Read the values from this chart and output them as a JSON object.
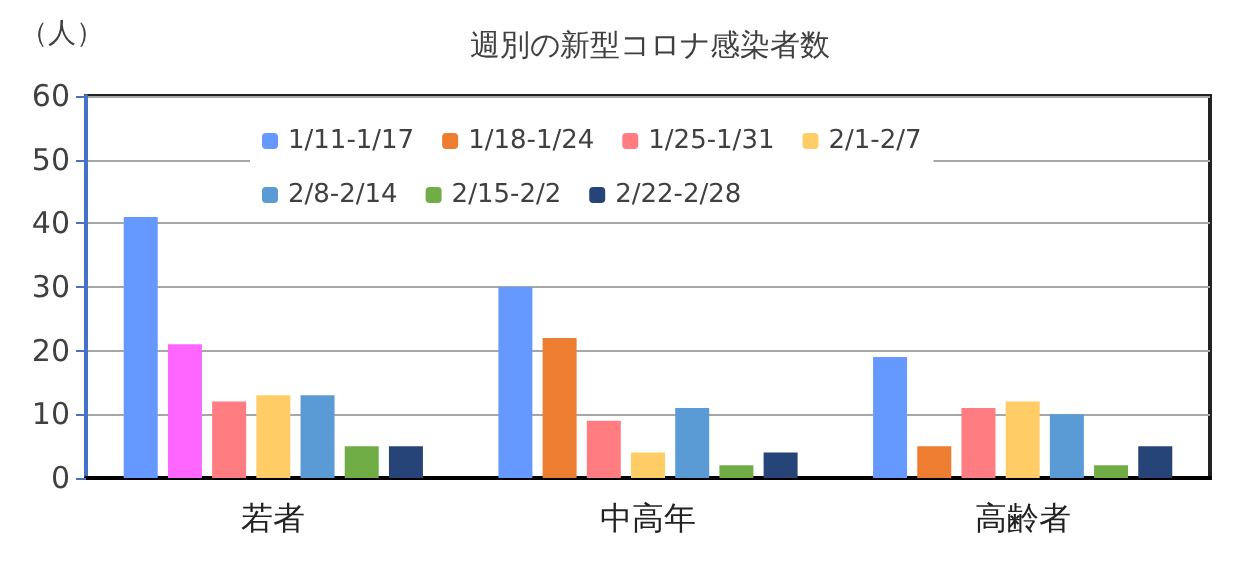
{
  "chart_data": {
    "type": "bar",
    "title": "週別の新型コロナ感染者数",
    "ylabel": "（人）",
    "categories": [
      "若者",
      "中高年",
      "高齢者"
    ],
    "series": [
      {
        "name": "1/11-1/17",
        "color": "#6699ff",
        "values": [
          41,
          30,
          19
        ]
      },
      {
        "name": "1/18-1/24",
        "color": "#ed7d31",
        "colors": [
          "#ff66ff",
          "#ed7d31",
          "#ed7d31"
        ],
        "values": [
          21,
          22,
          5
        ]
      },
      {
        "name": "1/25-1/31",
        "color": "#ff7c80",
        "values": [
          12,
          9,
          11
        ]
      },
      {
        "name": "2/1-2/7",
        "color": "#ffcc66",
        "values": [
          13,
          4,
          12
        ]
      },
      {
        "name": "2/8-2/14",
        "color": "#5b9bd5",
        "values": [
          13,
          11,
          10
        ]
      },
      {
        "name": "2/15-2/2",
        "color": "#70ad47",
        "values": [
          5,
          2,
          2
        ]
      },
      {
        "name": "2/22-2/28",
        "color": "#264478",
        "values": [
          5,
          4,
          5
        ]
      }
    ],
    "ylim": [
      0,
      60
    ],
    "yticks": [
      0,
      10,
      20,
      30,
      40,
      50,
      60
    ],
    "grid": "y",
    "legend": "top"
  }
}
